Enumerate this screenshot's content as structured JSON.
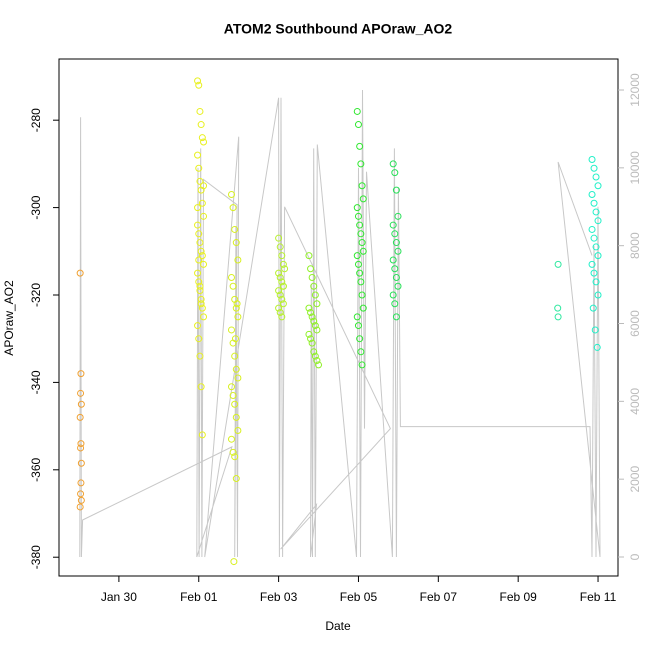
{
  "chart_data": {
    "type": "scatter",
    "title": "ATOM2 Southbound APOraw_AO2",
    "x_label": "Date",
    "y_label": "APOraw_AO2",
    "xlim": [
      28.5,
      42.5
    ],
    "xticks": [
      {
        "value": 30,
        "label": "Jan 30"
      },
      {
        "value": 32,
        "label": "Feb 01"
      },
      {
        "value": 34,
        "label": "Feb 03"
      },
      {
        "value": 36,
        "label": "Feb 05"
      },
      {
        "value": 38,
        "label": "Feb 07"
      },
      {
        "value": 40,
        "label": "Feb 09"
      },
      {
        "value": 42,
        "label": "Feb 11"
      }
    ],
    "ylim": [
      -384.3,
      -266
    ],
    "yticks": [
      -380,
      -360,
      -340,
      -320,
      -300,
      -280
    ],
    "y2lim": [
      -488,
      12797
    ],
    "y2ticks": [
      0,
      2000,
      4000,
      6000,
      8000,
      10000,
      12000
    ],
    "points": [
      {
        "color": "#f0a030",
        "x": [
          29.03,
          29.05,
          29.04,
          29.06,
          29.03,
          29.05,
          29.04,
          29.06,
          29.05,
          29.04,
          29.06,
          29.03
        ],
        "y": [
          -315,
          -338,
          -342.5,
          -345,
          -348,
          -354,
          -355,
          -358.5,
          -363,
          -365.5,
          -367,
          -368.5
        ]
      },
      {
        "color": "#e8f020",
        "x": [
          31.97,
          32.0,
          32.03,
          32.06,
          32.09,
          32.12,
          31.97,
          32.0,
          32.03,
          32.06,
          32.09,
          32.12,
          31.97,
          32.0,
          32.03,
          32.06,
          32.09,
          32.12,
          31.97,
          32.0,
          32.03,
          32.06,
          32.09,
          32.12,
          31.97,
          32.0,
          32.03,
          32.06,
          32.09,
          32.12,
          31.97,
          32.0,
          32.03,
          32.06
        ],
        "y": [
          -271,
          -272,
          -278,
          -281,
          -284,
          -285,
          -288,
          -291,
          -294,
          -296,
          -299,
          -302,
          -304,
          -306,
          -308,
          -310,
          -311,
          -313,
          -315,
          -317,
          -319,
          -321,
          -323,
          -325,
          -327,
          -330,
          -334,
          -341,
          -352,
          -295,
          -300,
          -312,
          -318,
          -322
        ]
      },
      {
        "color": "#d8f020",
        "x": [
          32.82,
          32.86,
          32.9,
          32.94,
          32.98,
          32.82,
          32.86,
          32.9,
          32.94,
          32.98,
          32.82,
          32.86,
          32.9,
          32.94,
          32.98,
          32.82,
          32.86,
          32.9,
          32.94,
          32.98,
          32.82,
          32.86,
          32.9,
          32.94,
          32.88,
          32.92,
          32.96
        ],
        "y": [
          -297,
          -300,
          -305,
          -308,
          -312,
          -316,
          -318,
          -321,
          -323,
          -325,
          -328,
          -331,
          -334,
          -337,
          -339,
          -341,
          -343,
          -345,
          -348,
          -351,
          -353,
          -356,
          -357,
          -362,
          -381,
          -330,
          -322
        ]
      },
      {
        "color": "#b8f030",
        "x": [
          34.0,
          34.04,
          34.08,
          34.12,
          34.0,
          34.04,
          34.08,
          34.12,
          34.0,
          34.04,
          34.08,
          34.12,
          34.0,
          34.04,
          34.08,
          34.12,
          34.15
        ],
        "y": [
          -307,
          -309,
          -311,
          -313,
          -315,
          -316,
          -317,
          -318,
          -319,
          -320,
          -321,
          -322,
          -323,
          -324,
          -325,
          -318,
          -314
        ]
      },
      {
        "color": "#90f028",
        "x": [
          34.76,
          34.8,
          34.84,
          34.88,
          34.92,
          34.96,
          34.76,
          34.8,
          34.84,
          34.88,
          34.92,
          34.96,
          34.76,
          34.8,
          34.84,
          34.88,
          34.92,
          34.96,
          35.0
        ],
        "y": [
          -311,
          -314,
          -316,
          -318,
          -320,
          -322,
          -323,
          -324,
          -325,
          -326,
          -327,
          -328,
          -329,
          -330,
          -331,
          -333,
          -334,
          -335,
          -336
        ]
      },
      {
        "color": "#30e830",
        "x": [
          35.97,
          36.0,
          36.03,
          36.06,
          36.09,
          36.12,
          35.97,
          36.0,
          36.03,
          36.06,
          36.09,
          36.12,
          35.97,
          36.0,
          36.03,
          36.06,
          36.09,
          36.12,
          35.97,
          36.0,
          36.03,
          36.06,
          36.09
        ],
        "y": [
          -278,
          -281,
          -286,
          -290,
          -295,
          -298,
          -300,
          -302,
          -304,
          -306,
          -308,
          -310,
          -311,
          -313,
          -315,
          -317,
          -320,
          -323,
          -325,
          -327,
          -330,
          -333,
          -336
        ]
      },
      {
        "color": "#28e058",
        "x": [
          36.87,
          36.91,
          36.95,
          36.99,
          36.87,
          36.91,
          36.95,
          36.99,
          36.87,
          36.91,
          36.95,
          36.99,
          36.87,
          36.91,
          36.95
        ],
        "y": [
          -290,
          -292,
          -296,
          -302,
          -304,
          -306,
          -308,
          -310,
          -312,
          -314,
          -316,
          -318,
          -320,
          -322,
          -325
        ]
      },
      {
        "color": "#30e8a0",
        "x": [
          41.0,
          40.99,
          41.0
        ],
        "y": [
          -313,
          -323,
          -325
        ]
      },
      {
        "color": "#20f0c8",
        "x": [
          41.85,
          41.9,
          41.95,
          42.0,
          41.85,
          41.9,
          41.95,
          42.0,
          41.85,
          41.9,
          41.95,
          42.0,
          41.85,
          41.9,
          41.95,
          42.0,
          41.88,
          41.93,
          41.98
        ],
        "y": [
          -289,
          -291,
          -293,
          -295,
          -297,
          -299,
          -301,
          -303,
          -305,
          -307,
          -309,
          -311,
          -313,
          -315,
          -317,
          -320,
          -323,
          -328,
          -332
        ]
      }
    ],
    "line": {
      "color": "#c8c8c8",
      "axis": "y2",
      "x": [
        29.02,
        29.04,
        29.06,
        29.09,
        32.83,
        31.95,
        31.98,
        32.01,
        32.05,
        32.08,
        32.12,
        32.96,
        32.9,
        32.93,
        32.97,
        33.0,
        32.15,
        34.0,
        34.02,
        34.06,
        34.1,
        34.15,
        36.8,
        34.05,
        34.95,
        34.8,
        34.82,
        34.85,
        34.88,
        34.92,
        34.97,
        35.95,
        36.0,
        36.05,
        36.1,
        36.15,
        36.2,
        36.85,
        36.9,
        36.95,
        37.0,
        37.05,
        41.8,
        41.85,
        41.9,
        41.95,
        42.0,
        42.05,
        41.0,
        41.85
      ],
      "y": [
        0,
        11300,
        0,
        950,
        2830,
        0,
        10000,
        0,
        10500,
        0,
        9700,
        9050,
        0,
        8500,
        0,
        10800,
        0,
        11800,
        0,
        11800,
        0,
        9000,
        3300,
        200,
        1350,
        0,
        7000,
        0,
        10500,
        0,
        10600,
        0,
        10000,
        0,
        12000,
        3300,
        9900,
        0,
        10500,
        0,
        9500,
        3350,
        3350,
        0,
        8000,
        0,
        9000,
        0,
        10150,
        7750
      ]
    }
  }
}
